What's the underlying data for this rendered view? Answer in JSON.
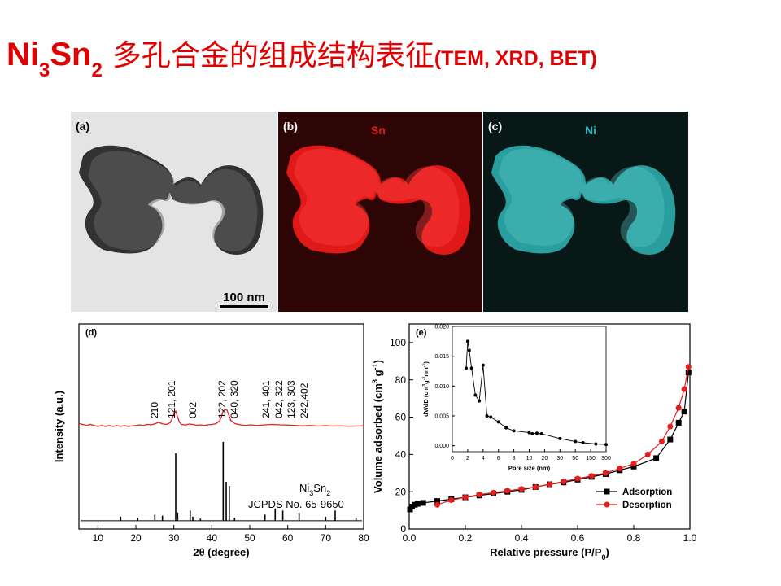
{
  "title": {
    "formula": [
      "Ni",
      "3",
      "Sn",
      "2"
    ],
    "text": "多孔合金的组成结构表征",
    "suffix": "(TEM, XRD, BET)"
  },
  "images": [
    {
      "label": "(a)",
      "scale_bar": "100 nm"
    },
    {
      "label": "(b)",
      "element": "Sn"
    },
    {
      "label": "(c)",
      "element": "Ni"
    }
  ],
  "chart_data": [
    {
      "type": "line",
      "panel_label": "(d)",
      "xlabel": "2θ (degree)",
      "ylabel": "Intensity (a.u.)",
      "xlim": [
        5,
        80
      ],
      "xticks": [
        10,
        20,
        30,
        40,
        50,
        60,
        70,
        80
      ],
      "ylim": [
        0,
        100
      ],
      "series": [
        {
          "type": "line",
          "color": "#e81c1c",
          "x": [
            5,
            6,
            7,
            8,
            9,
            10,
            11,
            12,
            13,
            14,
            15,
            16,
            17,
            18,
            19,
            20,
            21,
            22,
            23,
            24,
            25,
            26,
            27,
            28,
            29,
            29.5,
            30,
            30.5,
            31,
            31.5,
            32,
            33,
            34,
            35,
            36,
            37,
            38,
            39,
            40,
            41,
            42,
            42.5,
            43,
            43.5,
            44,
            44.5,
            45,
            46,
            47,
            48,
            49,
            50,
            52,
            54,
            56,
            58,
            60,
            62,
            64,
            66,
            68,
            70,
            72,
            74,
            76,
            78,
            80
          ],
          "values": [
            51.5,
            51,
            50.5,
            51,
            50.5,
            50,
            50.5,
            50,
            50.5,
            50,
            50.5,
            50,
            50.5,
            50,
            50.3,
            50.5,
            50.8,
            50.5,
            51,
            50.8,
            51.3,
            52,
            51.3,
            51,
            51.8,
            53.5,
            56,
            57.5,
            54.5,
            52,
            51,
            50.7,
            51.2,
            51,
            50.6,
            50.8,
            50.5,
            50.8,
            51,
            51.3,
            52.5,
            54.5,
            57.5,
            58.3,
            58,
            55.5,
            53,
            51.5,
            51,
            50.7,
            50.5,
            50.8,
            50.5,
            50.8,
            51,
            50.8,
            50.7,
            50.5,
            50.3,
            50.5,
            50.2,
            50.4,
            50.2,
            50.3,
            50.1,
            50.2,
            50.3
          ]
        },
        {
          "type": "stem",
          "color": "#000000",
          "baseline": 4,
          "x": [
            16,
            20.5,
            25,
            27,
            30.5,
            31,
            34.3,
            35,
            37,
            43,
            43.8,
            44.6,
            46,
            54,
            56.7,
            58.7,
            63,
            70,
            72.5,
            78
          ],
          "values": [
            6,
            5.5,
            7,
            6.5,
            37,
            8,
            9,
            6,
            5,
            42.5,
            23,
            21,
            5.5,
            7,
            10,
            9,
            8,
            6,
            9,
            5.5
          ]
        }
      ],
      "peak_labels": [
        {
          "text": "210",
          "x": 24.9
        },
        {
          "text": "121, 201",
          "x": 29.4
        },
        {
          "text": "002",
          "x": 35
        },
        {
          "text": "122, 202",
          "x": 42.7
        },
        {
          "text": "040, 320",
          "x": 45.9
        },
        {
          "text": "241, 401",
          "x": 54.3
        },
        {
          "text": "042, 322",
          "x": 57.7
        },
        {
          "text": "123, 303",
          "x": 60.9
        },
        {
          "text": "242,402",
          "x": 64.4
        }
      ],
      "reference_label": {
        "formula": [
          "Ni",
          "3",
          "Sn",
          "2"
        ],
        "card": "JCPDS No. 65-9650"
      }
    },
    {
      "type": "line",
      "panel_label": "(e)",
      "xlabel": [
        "Relative pressure (P/P",
        "0",
        ")"
      ],
      "ylabel": [
        "Volume adsorbed (cm",
        "3",
        " g",
        "-1",
        ")"
      ],
      "xlim": [
        0,
        1
      ],
      "xticks": [
        {
          "value": 0,
          "label": "0.0"
        },
        {
          "value": 0.2,
          "label": "0.2"
        },
        {
          "value": 0.4,
          "label": "0.4"
        },
        {
          "value": 0.6,
          "label": "0.6"
        },
        {
          "value": 0.8,
          "label": "0.8"
        },
        {
          "value": 1,
          "label": "1.0"
        }
      ],
      "ylim": [
        0,
        110
      ],
      "yticks": [
        0,
        20,
        40,
        60,
        80,
        100
      ],
      "legend": "lower right",
      "series": [
        {
          "name": "Adsorption",
          "type": "line",
          "marker": "square",
          "color": "#000000",
          "x": [
            0.003,
            0.01,
            0.02,
            0.03,
            0.05,
            0.1,
            0.15,
            0.2,
            0.25,
            0.3,
            0.35,
            0.4,
            0.45,
            0.5,
            0.55,
            0.6,
            0.65,
            0.7,
            0.75,
            0.8,
            0.88,
            0.93,
            0.96,
            0.98,
            0.995
          ],
          "values": [
            10.5,
            12,
            13,
            13.5,
            14,
            15,
            16,
            17,
            18,
            19,
            20,
            21,
            22.5,
            24,
            25,
            26.5,
            28,
            29.5,
            31.5,
            33.5,
            38,
            48,
            57,
            63,
            84
          ]
        },
        {
          "name": "Desorption",
          "type": "line",
          "marker": "circle",
          "color": "#e81c1c",
          "x": [
            0.1,
            0.15,
            0.2,
            0.25,
            0.3,
            0.35,
            0.4,
            0.45,
            0.5,
            0.55,
            0.6,
            0.65,
            0.7,
            0.75,
            0.8,
            0.85,
            0.9,
            0.93,
            0.96,
            0.98,
            0.995
          ],
          "values": [
            13,
            15.5,
            17,
            18.5,
            19.5,
            20.5,
            21.5,
            22.5,
            24,
            25.5,
            27,
            28.5,
            30,
            32.5,
            35,
            40,
            47,
            55,
            65,
            75,
            87
          ]
        }
      ]
    },
    {
      "type": "line",
      "xlabel": "Pore size (nm)",
      "ylabel": [
        "dV/dD (cm",
        "3",
        "g",
        "-1",
        "nm",
        "-1",
        ")"
      ],
      "xscale": "tick-spaced",
      "xlim": [
        0,
        300
      ],
      "xticks": [
        0,
        2,
        4,
        6,
        8,
        10,
        20,
        30,
        50,
        150,
        300
      ],
      "ylim": [
        -0.001,
        0.02
      ],
      "yticks": [
        {
          "value": 0,
          "label": "0.000"
        },
        {
          "value": 0.005,
          "label": "0.005"
        },
        {
          "value": 0.01,
          "label": "0.010"
        },
        {
          "value": 0.015,
          "label": "0.015"
        },
        {
          "value": 0.02,
          "label": "0.020"
        }
      ],
      "series": [
        {
          "type": "line",
          "marker": "dot",
          "color": "#000000",
          "x": [
            1.8,
            2,
            2.2,
            2.5,
            3,
            3.5,
            4,
            4.5,
            5,
            6,
            7,
            8,
            10,
            12,
            15,
            18,
            30,
            50,
            100,
            200,
            300
          ],
          "values": [
            0.013,
            0.0175,
            0.016,
            0.013,
            0.0085,
            0.0075,
            0.0135,
            0.005,
            0.0048,
            0.004,
            0.003,
            0.0025,
            0.0022,
            0.002,
            0.0021,
            0.002,
            0.0012,
            0.0007,
            0.0005,
            0.0003,
            0.0002
          ]
        }
      ]
    }
  ]
}
